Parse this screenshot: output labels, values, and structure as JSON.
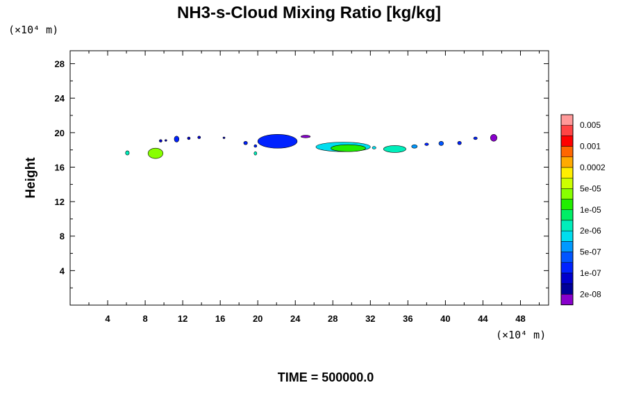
{
  "chart_data": {
    "type": "heatmap",
    "title": "NH3-s-Cloud Mixing Ratio [kg/kg]",
    "ylabel": "Height",
    "y_unit": "(×10⁴ m)",
    "x_unit": "(×10⁴ m)",
    "xlim": [
      0,
      51
    ],
    "ylim": [
      0,
      29.5
    ],
    "x_ticks": [
      "4",
      "8",
      "12",
      "16",
      "20",
      "24",
      "28",
      "32",
      "36",
      "40",
      "44",
      "48"
    ],
    "x_tick_values": [
      4,
      8,
      12,
      16,
      20,
      24,
      28,
      32,
      36,
      40,
      44,
      48
    ],
    "y_ticks": [
      "4",
      "8",
      "12",
      "16",
      "20",
      "24",
      "28"
    ],
    "y_tick_values": [
      4,
      8,
      12,
      16,
      20,
      24,
      28
    ],
    "time_label": "TIME = 500000.0",
    "colorbar": {
      "labels": [
        "0.005",
        "0.001",
        "0.0002",
        "5e-05",
        "1e-05",
        "2e-06",
        "5e-07",
        "1e-07",
        "2e-08"
      ],
      "colors": [
        "#ff9999",
        "#ff4444",
        "#ff0000",
        "#ff6600",
        "#ffaa00",
        "#ffee00",
        "#ccff00",
        "#88ff00",
        "#22ee00",
        "#00ee66",
        "#00eebb",
        "#00ddee",
        "#0099ff",
        "#0055ff",
        "#0022ff",
        "#0000cc",
        "#000099",
        "#8800cc"
      ]
    },
    "cloud_patches": [
      {
        "name": "patch-1",
        "x": [
          5.9,
          6.3
        ],
        "y": [
          17.4,
          17.9
        ],
        "color": "#00eebb"
      },
      {
        "name": "patch-2",
        "x": [
          8.3,
          9.9
        ],
        "y": [
          17.0,
          18.2
        ],
        "color": "#88ff00"
      },
      {
        "name": "patch-3",
        "x": [
          9.5,
          9.8
        ],
        "y": [
          18.9,
          19.2
        ],
        "color": "#0000cc"
      },
      {
        "name": "patch-4",
        "x": [
          10.1,
          10.3
        ],
        "y": [
          19.0,
          19.2
        ],
        "color": "#0000cc"
      },
      {
        "name": "patch-5",
        "x": [
          11.1,
          11.6
        ],
        "y": [
          18.9,
          19.6
        ],
        "color": "#0022ff"
      },
      {
        "name": "patch-6",
        "x": [
          12.5,
          12.8
        ],
        "y": [
          19.2,
          19.5
        ],
        "color": "#0000cc"
      },
      {
        "name": "patch-7",
        "x": [
          13.6,
          13.9
        ],
        "y": [
          19.3,
          19.6
        ],
        "color": "#0000cc"
      },
      {
        "name": "patch-8",
        "x": [
          16.3,
          16.5
        ],
        "y": [
          19.3,
          19.5
        ],
        "color": "#0000cc"
      },
      {
        "name": "patch-9",
        "x": [
          18.5,
          18.9
        ],
        "y": [
          18.6,
          19.0
        ],
        "color": "#0022ff"
      },
      {
        "name": "patch-10",
        "x": [
          19.6,
          19.9
        ],
        "y": [
          18.3,
          18.6
        ],
        "color": "#0022ff"
      },
      {
        "name": "patch-11",
        "x": [
          19.6,
          19.9
        ],
        "y": [
          17.4,
          17.8
        ],
        "color": "#00eebb"
      },
      {
        "name": "patch-12",
        "x": [
          20.0,
          24.2
        ],
        "y": [
          18.2,
          19.8
        ],
        "color": "#0022ff"
      },
      {
        "name": "patch-13",
        "x": [
          24.6,
          25.6
        ],
        "y": [
          19.4,
          19.7
        ],
        "color": "#8800cc"
      },
      {
        "name": "patch-14",
        "x": [
          26.2,
          32.0
        ],
        "y": [
          17.8,
          18.9
        ],
        "color": "#00ddee"
      },
      {
        "name": "patch-15",
        "x": [
          27.8,
          31.5
        ],
        "y": [
          17.8,
          18.6
        ],
        "color": "#22ee00"
      },
      {
        "name": "patch-16",
        "x": [
          32.2,
          32.6
        ],
        "y": [
          18.1,
          18.4
        ],
        "color": "#00ddee"
      },
      {
        "name": "patch-17",
        "x": [
          33.4,
          35.8
        ],
        "y": [
          17.7,
          18.5
        ],
        "color": "#00eebb"
      },
      {
        "name": "patch-18",
        "x": [
          36.4,
          37.0
        ],
        "y": [
          18.2,
          18.6
        ],
        "color": "#0099ff"
      },
      {
        "name": "patch-19",
        "x": [
          37.8,
          38.2
        ],
        "y": [
          18.5,
          18.8
        ],
        "color": "#0022ff"
      },
      {
        "name": "patch-20",
        "x": [
          39.3,
          39.8
        ],
        "y": [
          18.5,
          19.0
        ],
        "color": "#0055ff"
      },
      {
        "name": "patch-21",
        "x": [
          41.3,
          41.7
        ],
        "y": [
          18.6,
          19.0
        ],
        "color": "#0022ff"
      },
      {
        "name": "patch-22",
        "x": [
          43.0,
          43.4
        ],
        "y": [
          19.2,
          19.5
        ],
        "color": "#0022ff"
      },
      {
        "name": "patch-23",
        "x": [
          44.8,
          45.5
        ],
        "y": [
          19.0,
          19.8
        ],
        "color": "#8800cc"
      }
    ]
  }
}
